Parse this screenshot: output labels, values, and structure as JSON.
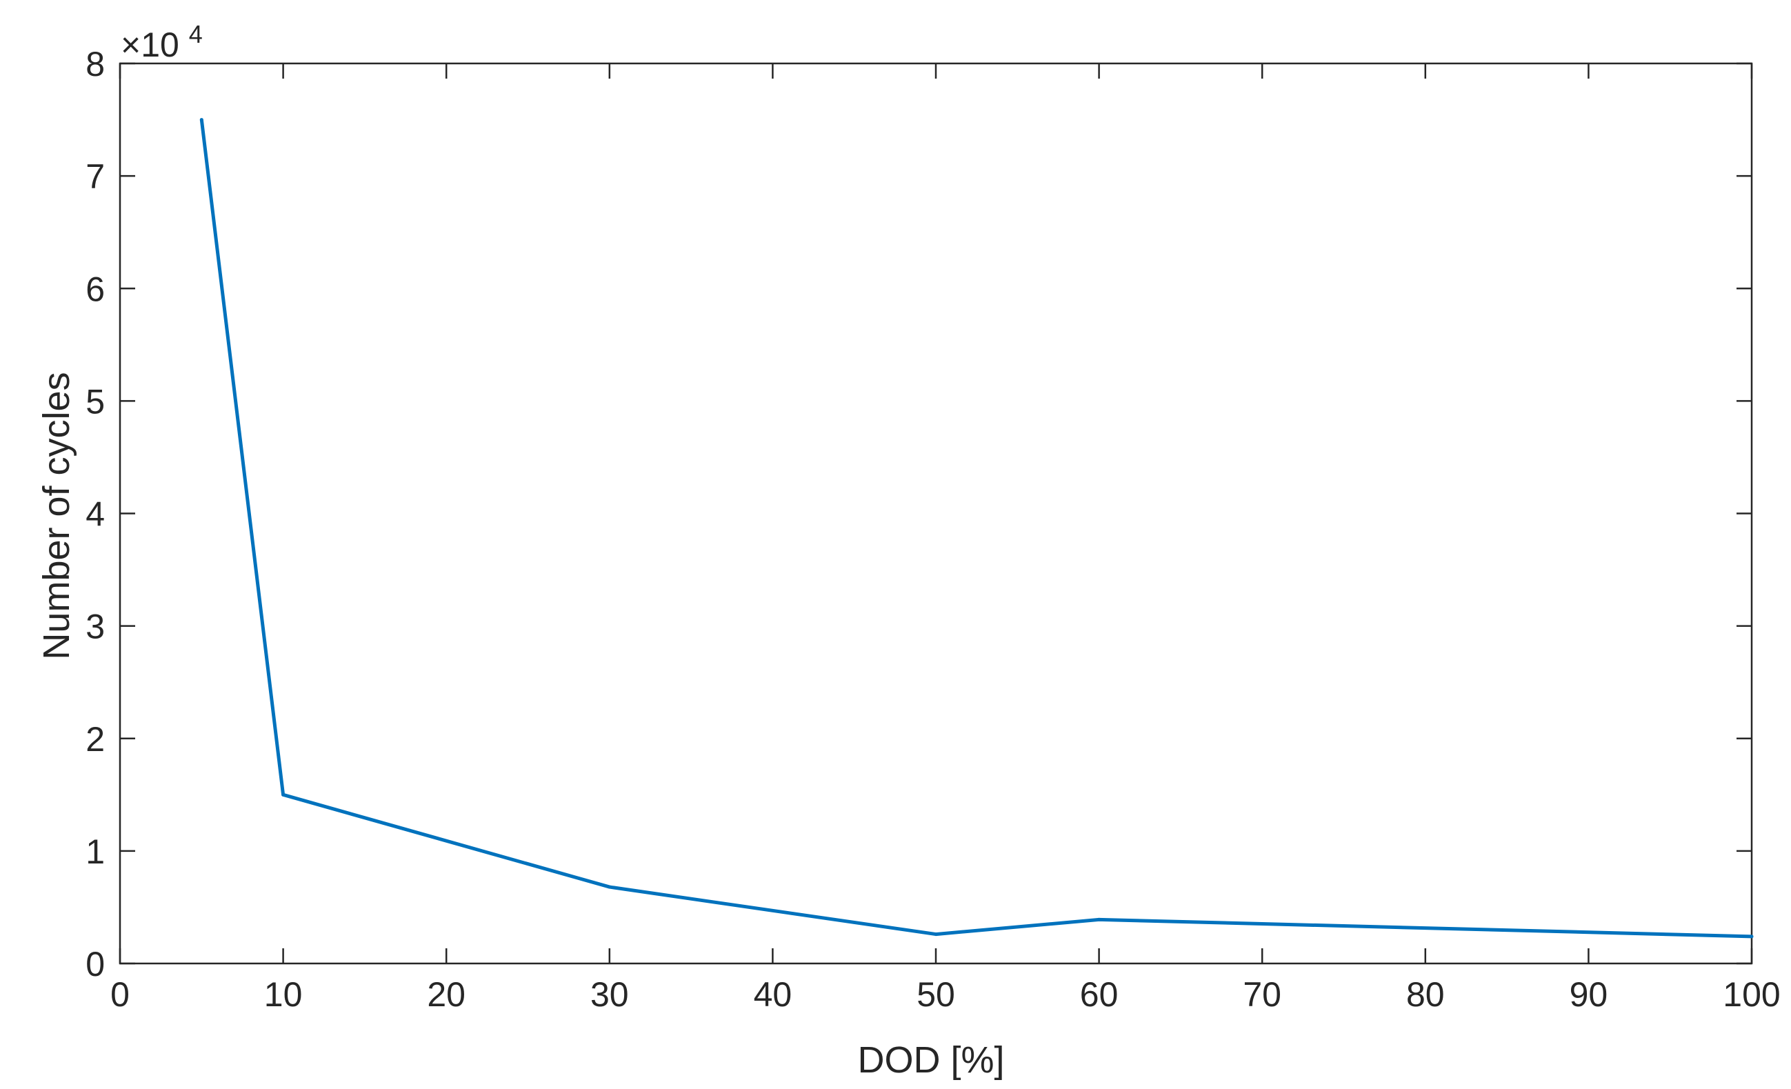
{
  "chart_data": {
    "type": "line",
    "title": "",
    "xlabel": "DOD [%]",
    "ylabel": "Number of cycles",
    "exponent_label": "×10",
    "exponent_power": "4",
    "xlim": [
      0,
      100
    ],
    "ylim": [
      0,
      80000
    ],
    "xticks": [
      "0",
      "10",
      "20",
      "30",
      "40",
      "50",
      "60",
      "70",
      "80",
      "90",
      "100"
    ],
    "yticks": [
      "0",
      "1",
      "2",
      "3",
      "4",
      "5",
      "6",
      "7",
      "8"
    ],
    "grid": false,
    "line_color": "#0072BD",
    "series": [
      {
        "x": [
          5,
          10,
          30,
          50,
          60,
          100
        ],
        "y": [
          75000,
          15000,
          6800,
          2600,
          3900,
          2400
        ]
      }
    ]
  }
}
